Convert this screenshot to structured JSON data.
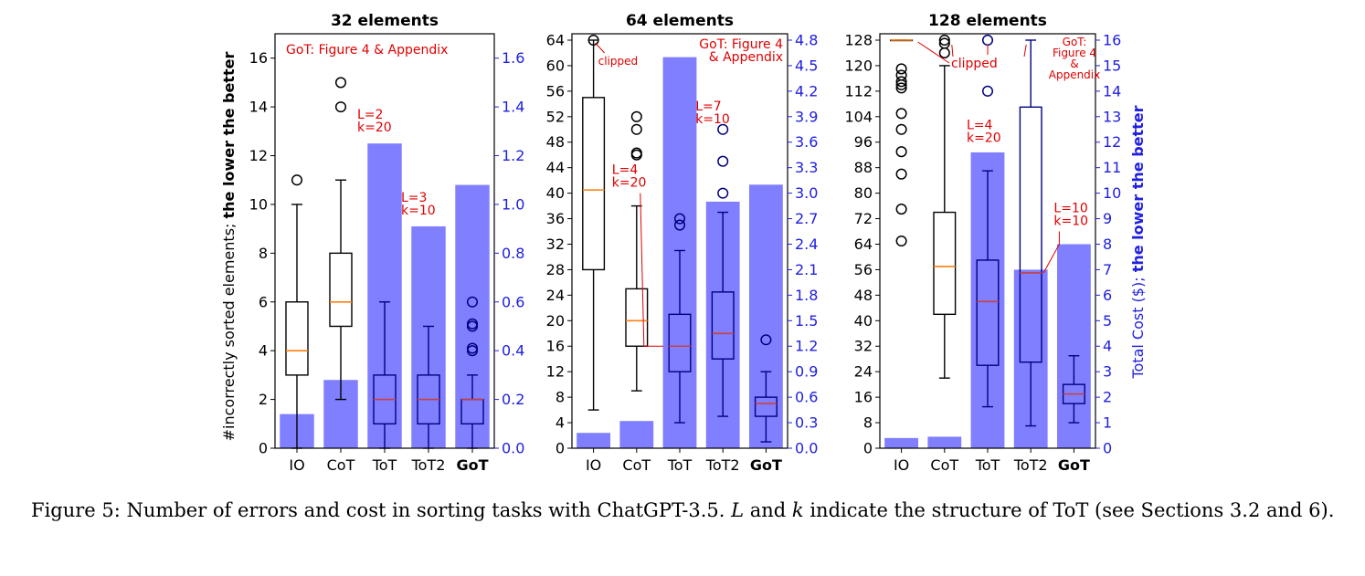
{
  "figure": {
    "left_axis_label_normal": "#incorrectly sorted elements; ",
    "left_axis_label_bold": "the lower the better",
    "right_axis_label_normal": "Total Cost ($); ",
    "right_axis_label_bold": "the lower the better",
    "colors": {
      "cost_bar": "#7f7fff",
      "cost_axis": "#2020e0",
      "median_line": "#ff7f0e",
      "annotation": "#e00000",
      "box_tot": "#000080"
    }
  },
  "caption": {
    "prefix": "Figure 5: Number of errors and cost in sorting tasks with ChatGPT-3.5. ",
    "var_L": "L",
    "and1": " and ",
    "var_k": "k",
    "suffix": " indicate the structure of ToT (see Sections 3.2 and 6)."
  },
  "chart_data": [
    {
      "type": "box+bar",
      "title": "32 elements",
      "categories": [
        "IO",
        "CoT",
        "ToT",
        "ToT2",
        "GoT"
      ],
      "bold_category": "GoT",
      "left_ylim": [
        0,
        17
      ],
      "left_ticks": [
        0,
        2,
        4,
        6,
        8,
        10,
        12,
        14,
        16
      ],
      "right_ylim": [
        0,
        1.7
      ],
      "right_ticks": [
        0.0,
        0.2,
        0.4,
        0.6,
        0.8,
        1.0,
        1.2,
        1.4,
        1.6
      ],
      "right_tick_labels": [
        "0.0",
        "0.2",
        "0.4",
        "0.6",
        "0.8",
        "1.0",
        "1.2",
        "1.4",
        "1.6"
      ],
      "cost": [
        0.14,
        0.28,
        1.25,
        0.91,
        1.08
      ],
      "boxes": [
        {
          "whislo": 0,
          "q1": 3,
          "med": 4,
          "q3": 6,
          "whishi": 10,
          "fliers": [
            11
          ]
        },
        {
          "whislo": 2,
          "q1": 5,
          "med": 6,
          "q3": 8,
          "whishi": 11,
          "fliers": [
            14,
            15
          ]
        },
        {
          "whislo": 0,
          "q1": 1,
          "med": 2,
          "q3": 3,
          "whishi": 6,
          "fliers": []
        },
        {
          "whislo": 0,
          "q1": 1,
          "med": 2,
          "q3": 3,
          "whishi": 5,
          "fliers": []
        },
        {
          "whislo": 0,
          "q1": 1,
          "med": 2,
          "q3": 2,
          "whishi": 3,
          "fliers": [
            4,
            4.1,
            5,
            5.1,
            6
          ]
        }
      ],
      "annotations": [
        {
          "text": "GoT: Figure 4 & Appendix"
        },
        {
          "lines": [
            "L=2",
            "k=20"
          ]
        },
        {
          "lines": [
            "L=3",
            "k=10"
          ]
        }
      ]
    },
    {
      "type": "box+bar",
      "title": "64 elements",
      "categories": [
        "IO",
        "CoT",
        "ToT",
        "ToT2",
        "GoT"
      ],
      "bold_category": "GoT",
      "left_ylim": [
        0,
        65
      ],
      "left_ticks": [
        0,
        4,
        8,
        12,
        16,
        20,
        24,
        28,
        32,
        36,
        40,
        44,
        48,
        52,
        56,
        60,
        64
      ],
      "right_ylim": [
        0,
        4.875
      ],
      "right_ticks": [
        0.0,
        0.3,
        0.6,
        0.9,
        1.2,
        1.5,
        1.8,
        2.1,
        2.4,
        2.7,
        3.0,
        3.3,
        3.6,
        3.9,
        4.2,
        4.5,
        4.8
      ],
      "right_tick_labels": [
        "0.0",
        "0.3",
        "0.6",
        "0.9",
        "1.2",
        "1.5",
        "1.8",
        "2.1",
        "2.4",
        "2.7",
        "3.0",
        "3.3",
        "3.6",
        "3.9",
        "4.2",
        "4.5",
        "4.8"
      ],
      "cost": [
        0.18,
        0.32,
        4.6,
        2.9,
        3.1
      ],
      "boxes": [
        {
          "whislo": 6,
          "q1": 28,
          "med": 40.5,
          "q3": 55,
          "whishi": 64,
          "fliers": [
            64
          ]
        },
        {
          "whislo": 9,
          "q1": 16,
          "med": 20,
          "q3": 25,
          "whishi": 38,
          "fliers": [
            46,
            46.3,
            50,
            52
          ]
        },
        {
          "whislo": 4,
          "q1": 12,
          "med": 16,
          "q3": 21,
          "whishi": 31,
          "fliers": [
            35,
            36
          ]
        },
        {
          "whislo": 5,
          "q1": 14,
          "med": 18,
          "q3": 24.5,
          "whishi": 37,
          "fliers": [
            40,
            45,
            50
          ]
        },
        {
          "whislo": 1,
          "q1": 5,
          "med": 7,
          "q3": 8,
          "whishi": 12,
          "fliers": [
            17
          ]
        }
      ],
      "annotations": [
        {
          "text": "clipped"
        },
        {
          "lines": [
            "GoT: Figure 4",
            "& Appendix"
          ]
        },
        {
          "lines": [
            "L=4",
            "k=20"
          ]
        },
        {
          "lines": [
            "L=7",
            "k=10"
          ]
        }
      ]
    },
    {
      "type": "box+bar",
      "title": "128 elements",
      "categories": [
        "IO",
        "CoT",
        "ToT",
        "ToT2",
        "GoT"
      ],
      "bold_category": "GoT",
      "left_ylim": [
        0,
        130
      ],
      "left_ticks": [
        0,
        8,
        16,
        24,
        32,
        40,
        48,
        56,
        64,
        72,
        80,
        88,
        96,
        104,
        112,
        120,
        128
      ],
      "right_ylim": [
        0,
        16.25
      ],
      "right_ticks": [
        0,
        1,
        2,
        3,
        4,
        5,
        6,
        7,
        8,
        9,
        10,
        11,
        12,
        13,
        14,
        15,
        16
      ],
      "right_tick_labels": [
        "0",
        "1",
        "2",
        "3",
        "4",
        "5",
        "6",
        "7",
        "8",
        "9",
        "10",
        "11",
        "12",
        "13",
        "14",
        "15",
        "16"
      ],
      "cost": [
        0.4,
        0.45,
        11.6,
        7.0,
        8.0
      ],
      "boxes": [
        {
          "whislo": 128,
          "q1": 128,
          "med": 128,
          "q3": 128,
          "whishi": 128,
          "fliers": [
            65,
            75,
            86,
            93,
            100,
            105,
            113,
            114,
            115,
            117,
            119
          ]
        },
        {
          "whislo": 22,
          "q1": 42,
          "med": 57,
          "q3": 74,
          "whishi": 120,
          "fliers": [
            124,
            127,
            128
          ]
        },
        {
          "whislo": 13,
          "q1": 26,
          "med": 46,
          "q3": 59,
          "whishi": 87,
          "fliers": [
            112,
            128
          ]
        },
        {
          "whislo": 7,
          "q1": 27,
          "med": 55,
          "q3": 107,
          "whishi": 128,
          "fliers": []
        },
        {
          "whislo": 8,
          "q1": 14,
          "med": 17,
          "q3": 20,
          "whishi": 29,
          "fliers": []
        }
      ],
      "annotations": [
        {
          "text": "clipped"
        },
        {
          "lines": [
            "GoT:",
            "Figure 4",
            "&",
            "Appendix"
          ]
        },
        {
          "lines": [
            "L=4",
            "k=20"
          ]
        },
        {
          "lines": [
            "L=10",
            "k=10"
          ]
        }
      ]
    }
  ]
}
